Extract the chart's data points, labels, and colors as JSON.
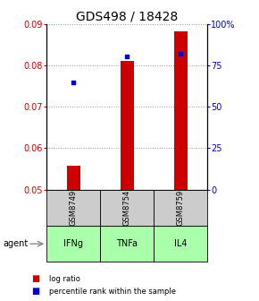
{
  "title": "GDS498 / 18428",
  "samples": [
    "GSM8749",
    "GSM8754",
    "GSM8759"
  ],
  "agents": [
    "IFNg",
    "TNFa",
    "IL4"
  ],
  "log_ratio": [
    0.0557,
    0.0812,
    0.0883
  ],
  "percentile_rank": [
    0.65,
    0.805,
    0.82
  ],
  "ylim_left": [
    0.05,
    0.09
  ],
  "ylim_right": [
    0.0,
    1.0
  ],
  "yticks_left": [
    0.05,
    0.06,
    0.07,
    0.08,
    0.09
  ],
  "yticks_right": [
    0.0,
    0.25,
    0.5,
    0.75,
    1.0
  ],
  "ytick_labels_right": [
    "0",
    "25",
    "50",
    "75",
    "100%"
  ],
  "ytick_labels_left": [
    "0.05",
    "0.06",
    "0.07",
    "0.08",
    "0.09"
  ],
  "bar_color": "#cc0000",
  "point_color": "#0000cc",
  "bar_width": 0.25,
  "agent_bg_color": "#aaffaa",
  "sample_bg_color": "#cccccc",
  "grid_color": "#999999",
  "title_fontsize": 10,
  "tick_fontsize": 7,
  "label_fontsize": 7
}
